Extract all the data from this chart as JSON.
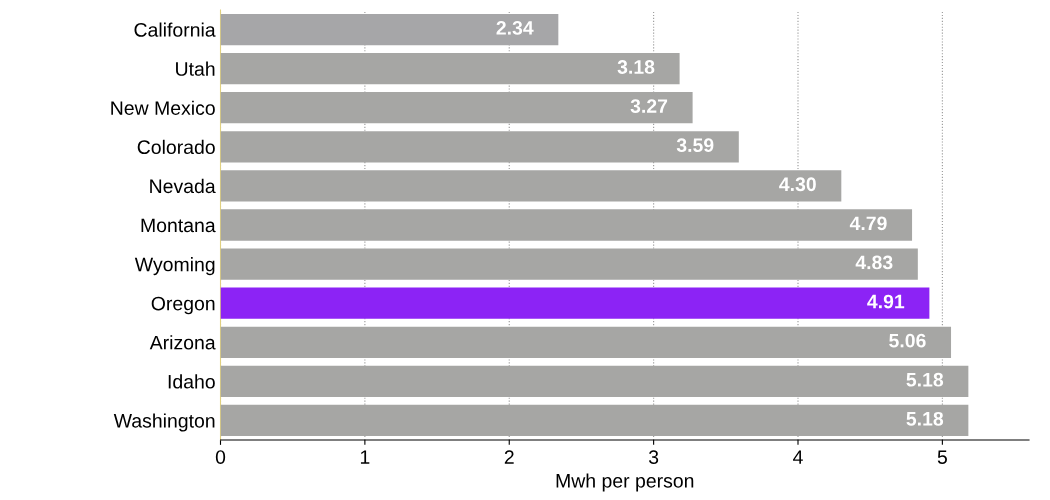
{
  "chart_data": {
    "type": "bar",
    "orientation": "horizontal",
    "xlabel": "Mwh per person",
    "categories": [
      "California",
      "Utah",
      "New Mexico",
      "Colorado",
      "Nevada",
      "Montana",
      "Wyoming",
      "Oregon",
      "Arizona",
      "Idaho",
      "Washington"
    ],
    "values": [
      2.34,
      3.18,
      3.27,
      3.59,
      4.3,
      4.79,
      4.83,
      4.91,
      5.06,
      5.18,
      5.18
    ],
    "value_labels": [
      "2.34",
      "3.18",
      "3.27",
      "3.59",
      "4.30",
      "4.79",
      "4.83",
      "4.91",
      "5.06",
      "5.18",
      "5.18"
    ],
    "colors": [
      "#a6a6a8",
      "#a6a6a4",
      "#a6a6a4",
      "#a6a6a4",
      "#a6a6a4",
      "#a6a6a4",
      "#a6a6a4",
      "#8c23f5",
      "#a6a6a4",
      "#a6a6a4",
      "#a6a6a4"
    ],
    "xlim": [
      0,
      5.6
    ],
    "xticks": [
      0,
      1,
      2,
      3,
      4,
      5
    ],
    "grid": "x"
  }
}
